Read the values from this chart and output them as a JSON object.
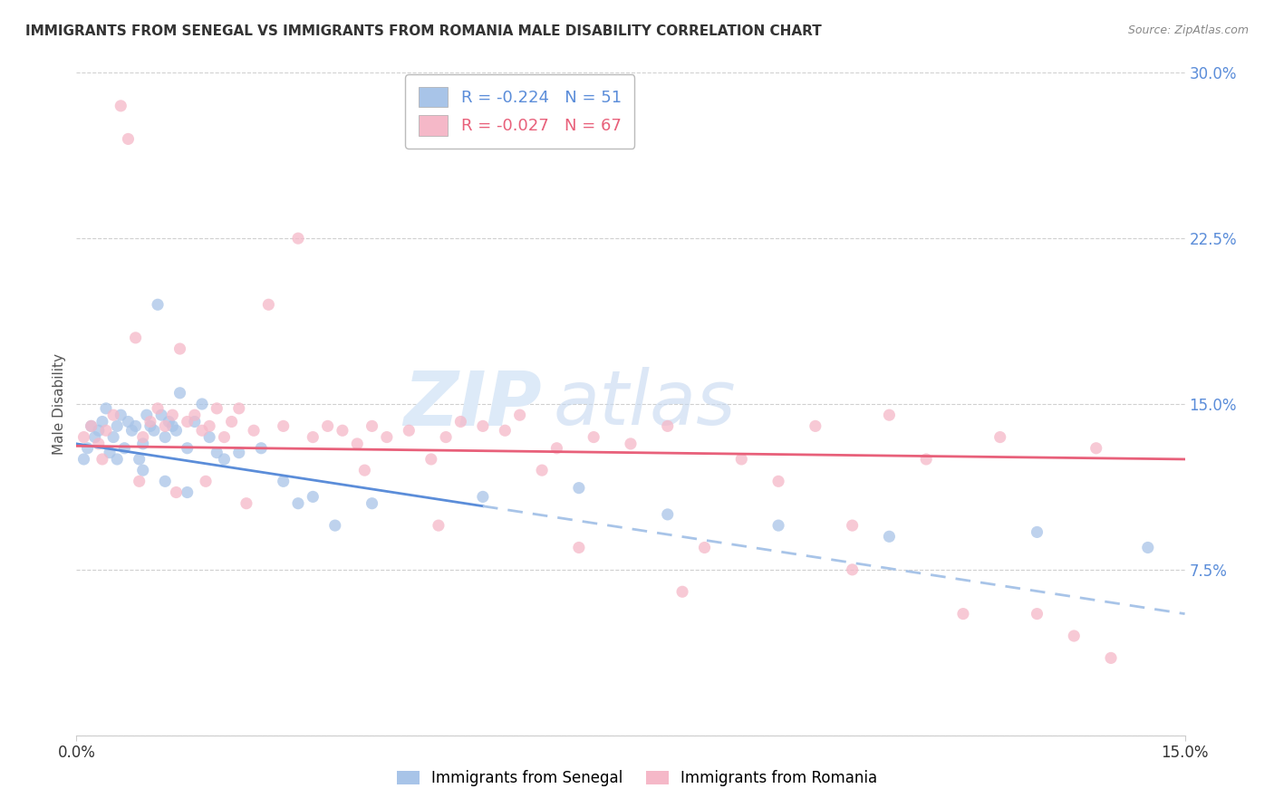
{
  "title": "IMMIGRANTS FROM SENEGAL VS IMMIGRANTS FROM ROMANIA MALE DISABILITY CORRELATION CHART",
  "source": "Source: ZipAtlas.com",
  "xmin": 0.0,
  "xmax": 15.0,
  "ymin": 0.0,
  "ymax": 30.0,
  "ylabel_values": [
    0.0,
    7.5,
    15.0,
    22.5,
    30.0
  ],
  "ylabel_labels": [
    "",
    "7.5%",
    "15.0%",
    "22.5%",
    "30.0%"
  ],
  "senegal_color": "#a8c4e8",
  "romania_color": "#f5b8c8",
  "senegal_label": "Immigrants from Senegal",
  "romania_label": "Immigrants from Romania",
  "senegal_R": "-0.224",
  "senegal_N": "51",
  "romania_R": "-0.027",
  "romania_N": "67",
  "trendline_blue_color": "#5b8dd9",
  "trendline_pink_color": "#e8607a",
  "trendline_dashed_color": "#a8c4e8",
  "watermark_zip": "ZIP",
  "watermark_atlas": "atlas",
  "axis_color": "#5b8dd9",
  "background_color": "#ffffff",
  "blue_trend_x0": 0.0,
  "blue_trend_y0": 13.2,
  "blue_trend_x1": 15.0,
  "blue_trend_y1": 5.5,
  "blue_solid_end": 5.5,
  "pink_trend_x0": 0.0,
  "pink_trend_y0": 13.1,
  "pink_trend_x1": 15.0,
  "pink_trend_y1": 12.5,
  "senegal_x": [
    0.1,
    0.15,
    0.2,
    0.25,
    0.3,
    0.35,
    0.4,
    0.45,
    0.5,
    0.55,
    0.6,
    0.65,
    0.7,
    0.75,
    0.8,
    0.85,
    0.9,
    0.95,
    1.0,
    1.05,
    1.1,
    1.15,
    1.2,
    1.25,
    1.3,
    1.35,
    1.4,
    1.5,
    1.6,
    1.7,
    1.8,
    1.9,
    2.0,
    2.2,
    2.5,
    2.8,
    3.0,
    3.5,
    4.0,
    5.5,
    6.8,
    8.0,
    9.5,
    11.0,
    13.0,
    14.5,
    3.2,
    0.55,
    0.9,
    1.2,
    1.5
  ],
  "senegal_y": [
    12.5,
    13.0,
    14.0,
    13.5,
    13.8,
    14.2,
    14.8,
    12.8,
    13.5,
    14.0,
    14.5,
    13.0,
    14.2,
    13.8,
    14.0,
    12.5,
    13.2,
    14.5,
    14.0,
    13.8,
    19.5,
    14.5,
    13.5,
    14.2,
    14.0,
    13.8,
    15.5,
    13.0,
    14.2,
    15.0,
    13.5,
    12.8,
    12.5,
    12.8,
    13.0,
    11.5,
    10.5,
    9.5,
    10.5,
    10.8,
    11.2,
    10.0,
    9.5,
    9.0,
    9.2,
    8.5,
    10.8,
    12.5,
    12.0,
    11.5,
    11.0
  ],
  "romania_x": [
    0.1,
    0.2,
    0.3,
    0.4,
    0.5,
    0.6,
    0.7,
    0.8,
    0.9,
    1.0,
    1.1,
    1.2,
    1.3,
    1.4,
    1.5,
    1.6,
    1.7,
    1.8,
    1.9,
    2.0,
    2.1,
    2.2,
    2.4,
    2.6,
    2.8,
    3.0,
    3.2,
    3.4,
    3.6,
    3.8,
    4.0,
    4.2,
    4.5,
    4.8,
    5.0,
    5.2,
    5.5,
    5.8,
    6.0,
    6.3,
    6.5,
    7.0,
    7.5,
    8.0,
    8.5,
    9.0,
    9.5,
    10.0,
    10.5,
    11.0,
    11.5,
    12.0,
    12.5,
    13.0,
    13.5,
    14.0,
    0.35,
    0.85,
    1.35,
    1.75,
    2.3,
    3.9,
    4.9,
    6.8,
    10.5,
    13.8,
    8.2
  ],
  "romania_y": [
    13.5,
    14.0,
    13.2,
    13.8,
    14.5,
    28.5,
    27.0,
    18.0,
    13.5,
    14.2,
    14.8,
    14.0,
    14.5,
    17.5,
    14.2,
    14.5,
    13.8,
    14.0,
    14.8,
    13.5,
    14.2,
    14.8,
    13.8,
    19.5,
    14.0,
    22.5,
    13.5,
    14.0,
    13.8,
    13.2,
    14.0,
    13.5,
    13.8,
    12.5,
    13.5,
    14.2,
    14.0,
    13.8,
    14.5,
    12.0,
    13.0,
    13.5,
    13.2,
    14.0,
    8.5,
    12.5,
    11.5,
    14.0,
    9.5,
    14.5,
    12.5,
    5.5,
    13.5,
    5.5,
    4.5,
    3.5,
    12.5,
    11.5,
    11.0,
    11.5,
    10.5,
    12.0,
    9.5,
    8.5,
    7.5,
    13.0,
    6.5
  ]
}
